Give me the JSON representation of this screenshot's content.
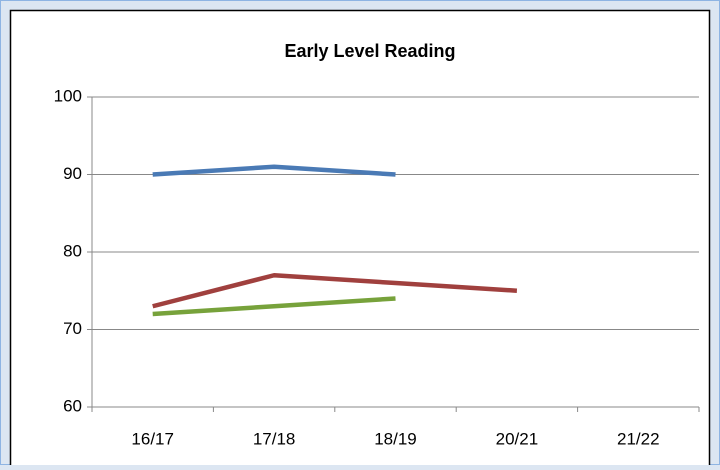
{
  "chart_data": {
    "type": "line",
    "title": "Early Level Reading",
    "categories": [
      "16/17",
      "17/18",
      "18/19",
      "20/21",
      "21/22"
    ],
    "series": [
      {
        "color": "#4a7ab5",
        "values": [
          90,
          91,
          90,
          null,
          null
        ]
      },
      {
        "color": "#a0403e",
        "values": [
          73,
          77,
          76,
          75,
          null
        ]
      },
      {
        "color": "#77a23b",
        "values": [
          72,
          73,
          74,
          null,
          null
        ]
      }
    ],
    "ylim": [
      60,
      100
    ],
    "yticks": [
      60,
      70,
      80,
      90,
      100
    ],
    "grid": true
  }
}
